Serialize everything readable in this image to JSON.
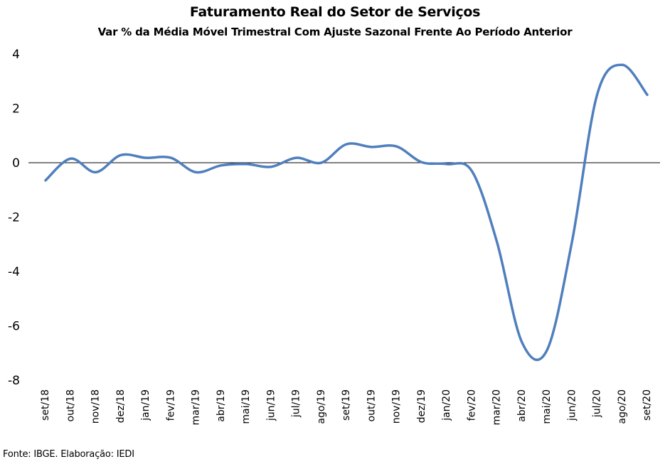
{
  "chart_data": {
    "type": "line",
    "title": "Faturamento Real do Setor de Serviços",
    "subtitle": "Var % da Média Móvel Trimestral Com Ajuste Sazonal Frente Ao Período Anterior",
    "categories": [
      "set/18",
      "out/18",
      "nov/18",
      "dez/18",
      "jan/19",
      "fev/19",
      "mar/19",
      "abr/19",
      "mai/19",
      "jun/19",
      "jul/19",
      "ago/19",
      "set/19",
      "out/19",
      "nov/19",
      "dez/19",
      "jan/20",
      "fev/20",
      "mar/20",
      "abr/20",
      "mai/20",
      "jun/20",
      "jul/20",
      "ago/20",
      "set/20"
    ],
    "series": [
      {
        "values": [
          -0.65,
          0.15,
          -0.35,
          0.28,
          0.18,
          0.18,
          -0.35,
          -0.1,
          -0.05,
          -0.15,
          0.18,
          0.0,
          0.68,
          0.58,
          0.6,
          0.02,
          -0.05,
          -0.3,
          -2.9,
          -6.6,
          -6.9,
          -2.9,
          2.5,
          3.6,
          2.5
        ],
        "color": "#4f7fbd"
      }
    ],
    "ylim": [
      -8,
      4
    ],
    "yticks": [
      "-8",
      "-6",
      "-4",
      "-2",
      "0",
      "2",
      "4"
    ],
    "grid": false,
    "legend": "none",
    "zero_line": true
  },
  "source": "Fonte: IBGE. Elaboração: IEDI"
}
